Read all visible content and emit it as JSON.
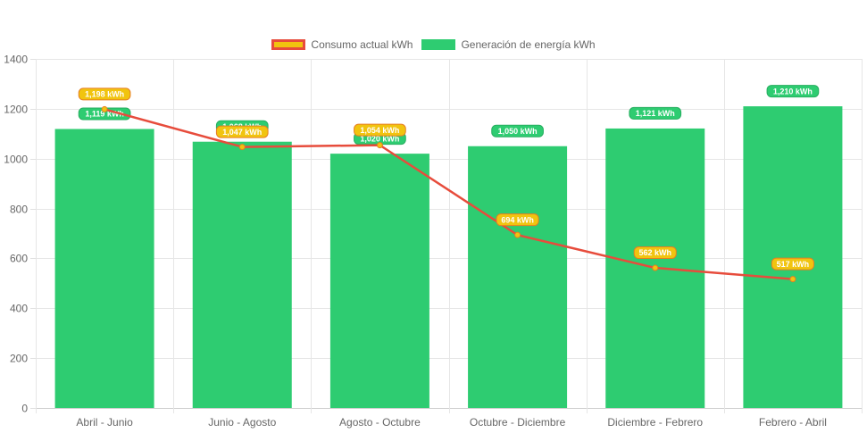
{
  "chart_data": {
    "type": "bar",
    "categories": [
      "Abril - Junio",
      "Junio - Agosto",
      "Agosto - Octubre",
      "Octubre - Diciembre",
      "Diciembre - Febrero",
      "Febrero - Abril"
    ],
    "series": [
      {
        "name": "Consumo actual kWh",
        "type": "line",
        "values": [
          1198,
          1047,
          1054,
          694,
          562,
          517
        ],
        "labels": [
          "1,198 kWh",
          "1,047 kWh",
          "1,054 kWh",
          "694 kWh",
          "562 kWh",
          "517 kWh"
        ],
        "color": "#e74c3c",
        "fill": "#f1c40f"
      },
      {
        "name": "Generación de energía kWh",
        "type": "bar",
        "values": [
          1119,
          1068,
          1020,
          1050,
          1121,
          1210
        ],
        "labels": [
          "1,119 kWh",
          "1,068 kWh",
          "1,020 kWh",
          "1,050 kWh",
          "1,121 kWh",
          "1,210 kWh"
        ],
        "color": "#2ecc71"
      }
    ],
    "ylim": [
      0,
      1400
    ],
    "yticks": [
      "0",
      "200",
      "400",
      "600",
      "800",
      "1000",
      "1200",
      "1400"
    ],
    "grid": true,
    "legend_position": "top"
  }
}
